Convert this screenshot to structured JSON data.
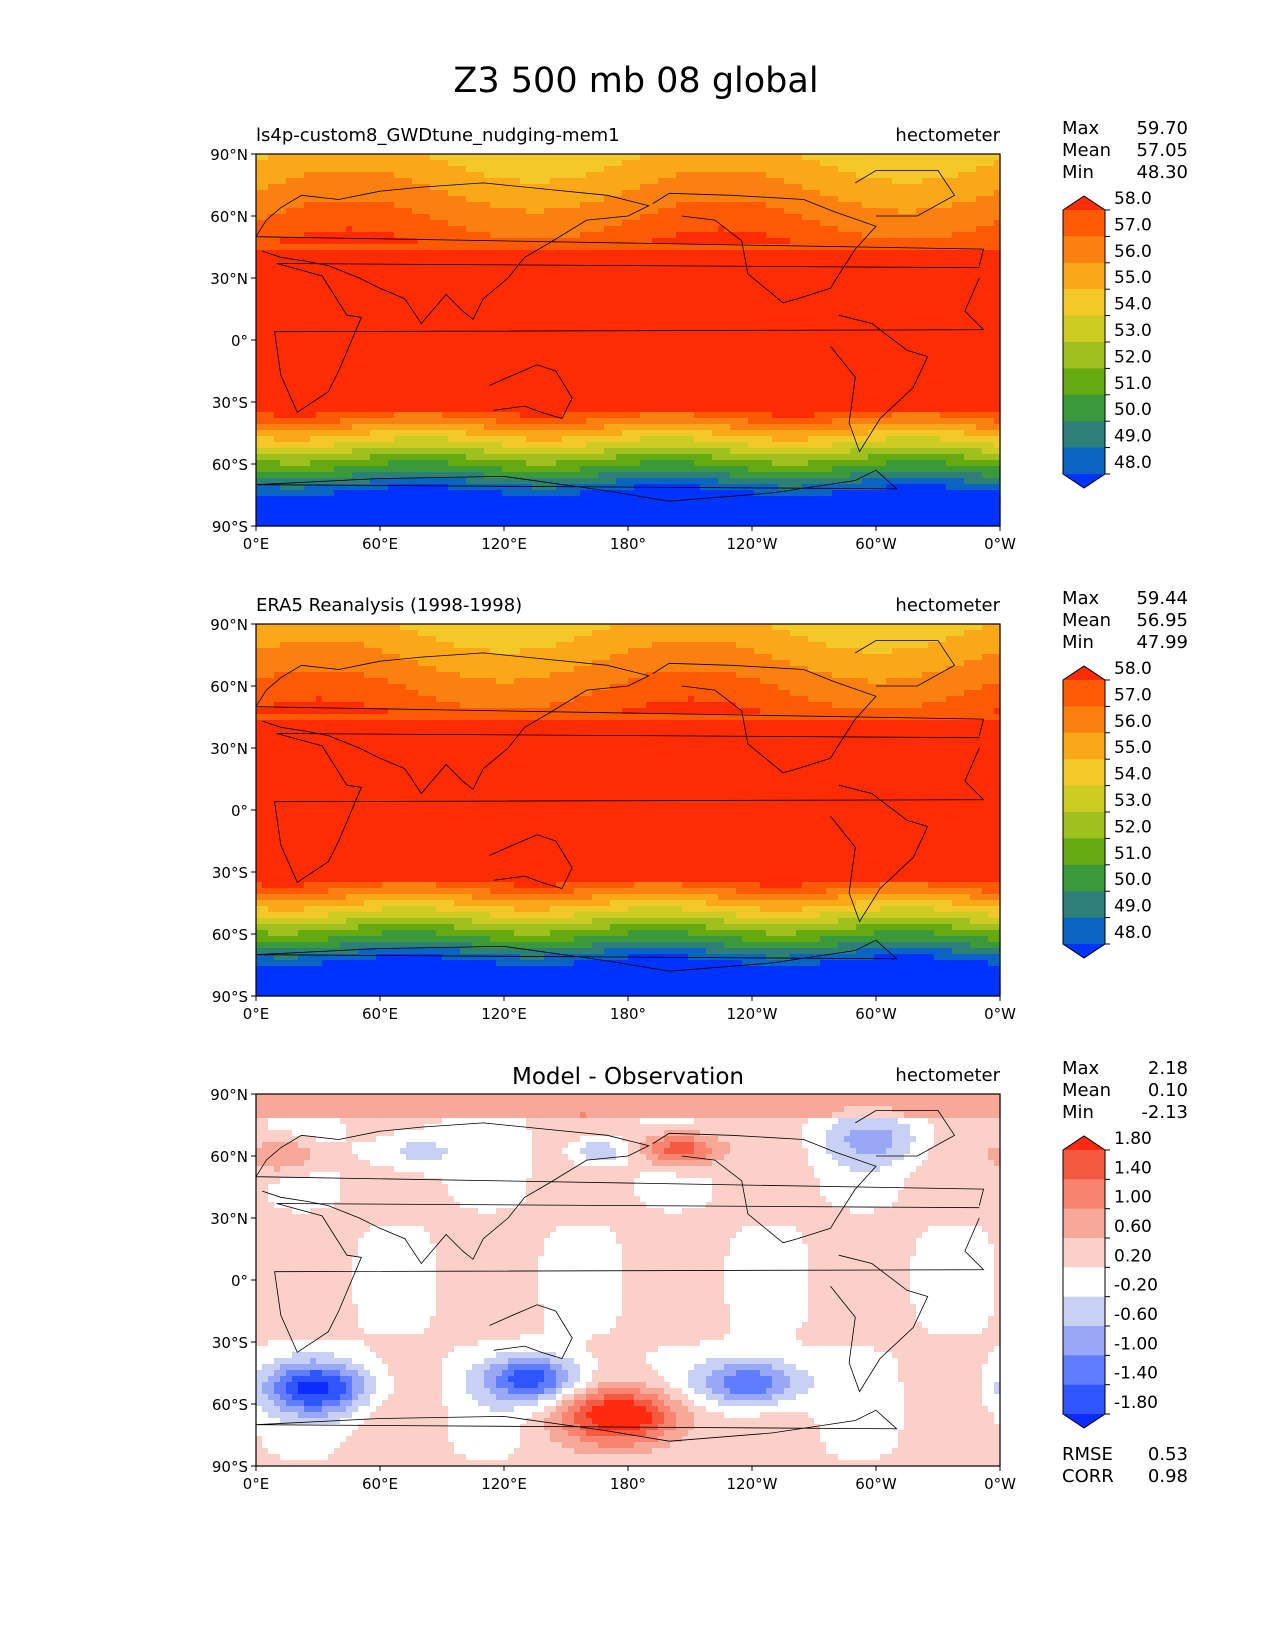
{
  "figure_title": "Z3 500 mb 08 global",
  "chart_data": [
    {
      "type": "heatmap",
      "panel": "test",
      "title": "ls4p-custom8_GWDtune_nudging-mem1",
      "title_centered": false,
      "units": "hectometer",
      "stats": {
        "max": "59.70",
        "mean": "57.05",
        "min": "48.30"
      },
      "stat_labels": {
        "max": "Max",
        "mean": "Mean",
        "min": "Min"
      },
      "field": "absolute",
      "colorbar": {
        "levels": [
          "48.0",
          "49.0",
          "50.0",
          "51.0",
          "52.0",
          "53.0",
          "54.0",
          "55.0",
          "56.0",
          "57.0",
          "58.0"
        ],
        "colors": [
          "#0033ff",
          "#0a64c2",
          "#2c8078",
          "#3a9a3a",
          "#66aa12",
          "#a0c020",
          "#cccc22",
          "#f5c82a",
          "#faa818",
          "#fa8010",
          "#fd5a06",
          "#fe2c02"
        ],
        "extend": "both"
      },
      "xticks": [
        "0°E",
        "60°E",
        "120°E",
        "180°",
        "120°W",
        "60°W",
        "0°W"
      ],
      "yticks": [
        "90°N",
        "60°N",
        "30°N",
        "0°",
        "30°S",
        "60°S",
        "90°S"
      ]
    },
    {
      "type": "heatmap",
      "panel": "reference",
      "title": "ERA5 Reanalysis (1998-1998)",
      "title_centered": false,
      "units": "hectometer",
      "stats": {
        "max": "59.44",
        "mean": "56.95",
        "min": "47.99"
      },
      "stat_labels": {
        "max": "Max",
        "mean": "Mean",
        "min": "Min"
      },
      "field": "absolute",
      "colorbar": {
        "levels": [
          "48.0",
          "49.0",
          "50.0",
          "51.0",
          "52.0",
          "53.0",
          "54.0",
          "55.0",
          "56.0",
          "57.0",
          "58.0"
        ],
        "colors": [
          "#0033ff",
          "#0a64c2",
          "#2c8078",
          "#3a9a3a",
          "#66aa12",
          "#a0c020",
          "#cccc22",
          "#f5c82a",
          "#faa818",
          "#fa8010",
          "#fd5a06",
          "#fe2c02"
        ],
        "extend": "both"
      },
      "xticks": [
        "0°E",
        "60°E",
        "120°E",
        "180°",
        "120°W",
        "60°W",
        "0°W"
      ],
      "yticks": [
        "90°N",
        "60°N",
        "30°N",
        "0°",
        "30°S",
        "60°S",
        "90°S"
      ]
    },
    {
      "type": "heatmap",
      "panel": "difference",
      "title": "Model - Observation",
      "title_centered": true,
      "units": "hectometer",
      "stats": {
        "max": "2.18",
        "mean": "0.10",
        "min": "-2.13"
      },
      "stat_labels": {
        "max": "Max",
        "mean": "Mean",
        "min": "Min"
      },
      "field": "difference",
      "colorbar": {
        "levels": [
          "-1.80",
          "-1.40",
          "-1.00",
          "-0.60",
          "-0.20",
          "0.20",
          "0.60",
          "1.00",
          "1.40",
          "1.80"
        ],
        "colors": [
          "#0a2cff",
          "#2e55ff",
          "#607cff",
          "#98a8f7",
          "#c8d0f4",
          "#ffffff",
          "#fbd0c8",
          "#f8a898",
          "#f88470",
          "#f55a40",
          "#ff2a10"
        ],
        "extend": "both"
      },
      "metrics": {
        "rmse_label": "RMSE",
        "rmse": "0.53",
        "corr_label": "CORR",
        "corr": "0.98"
      },
      "xticks": [
        "0°E",
        "60°E",
        "120°E",
        "180°",
        "120°W",
        "60°W",
        "0°W"
      ],
      "yticks": [
        "90°N",
        "60°N",
        "30°N",
        "0°",
        "30°S",
        "60°S",
        "90°S"
      ]
    }
  ]
}
